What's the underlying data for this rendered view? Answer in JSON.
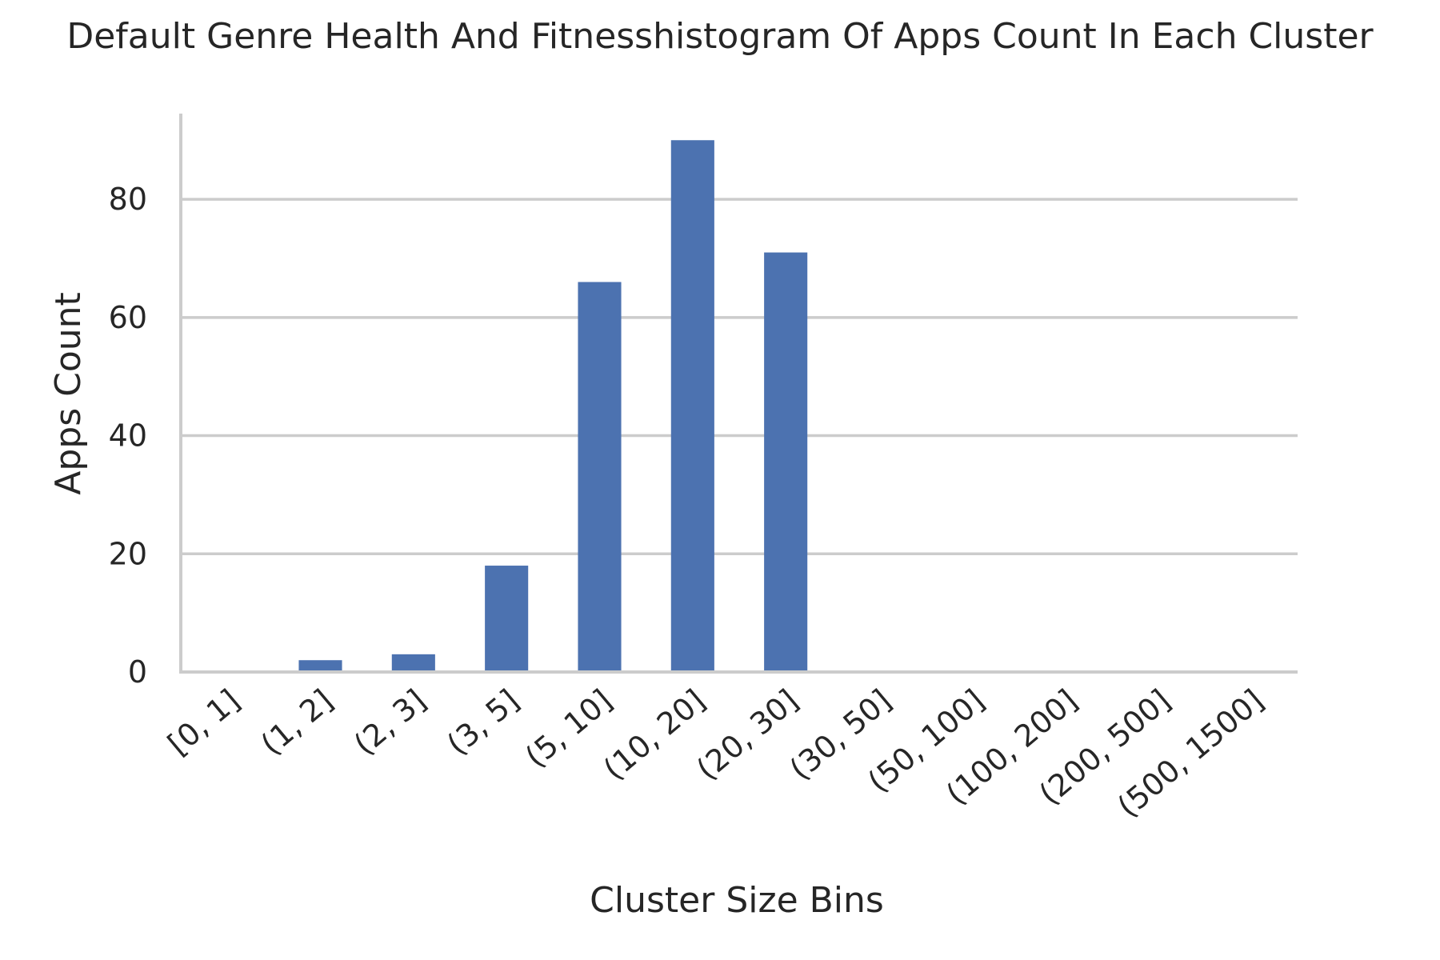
{
  "chart_data": {
    "type": "bar",
    "title": "Default Genre Health And Fitnesshistogram Of Apps Count In Each Cluster",
    "xlabel": "Cluster Size Bins",
    "ylabel": "Apps Count",
    "categories": [
      "[0, 1]",
      "(1, 2]",
      "(2, 3]",
      "(3, 5]",
      "(5, 10]",
      "(10, 20]",
      "(20, 30]",
      "(30, 50]",
      "(50, 100]",
      "(100, 200]",
      "(200, 500]",
      "(500, 1500]"
    ],
    "values": [
      0,
      2,
      3,
      18,
      66,
      90,
      71,
      0,
      0,
      0,
      0,
      0
    ],
    "ylim": [
      0,
      94.5
    ],
    "yticks": [
      0,
      20,
      40,
      60,
      80
    ],
    "grid": true,
    "bar_color": "#4c72b0"
  }
}
